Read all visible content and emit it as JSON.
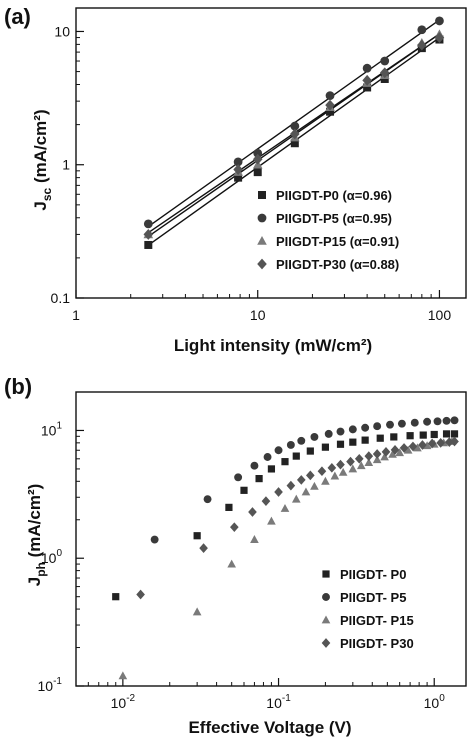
{
  "panel_a": {
    "label": "(a)",
    "chart_data": {
      "type": "scatter",
      "xscale": "log",
      "yscale": "log",
      "xlim": [
        1,
        140
      ],
      "ylim": [
        0.1,
        15
      ],
      "xticks": [
        1,
        10,
        100
      ],
      "xtick_labels": [
        "1",
        "10",
        "100"
      ],
      "yticks": [
        0.1,
        1,
        10
      ],
      "ytick_labels": [
        "0.1",
        "1",
        "10"
      ],
      "xlabel": "Light intensity (mW/cm²)",
      "ylabel_main": "J",
      "ylabel_sub": "sc",
      "ylabel_rest": " (mA/cm²)",
      "legend_position": "bottom-right",
      "fit_lines": true,
      "series": [
        {
          "name": "PIIGDT-P0 (α=0.96)",
          "marker": "square",
          "color": "#222222",
          "x": [
            2.5,
            7.8,
            10,
            16,
            25,
            40,
            50,
            80,
            100
          ],
          "y": [
            0.25,
            0.8,
            0.88,
            1.45,
            2.5,
            3.8,
            4.4,
            7.5,
            8.7
          ]
        },
        {
          "name": "PIIGDT-P5 (α=0.95)",
          "marker": "circle",
          "color": "#3a3a3a",
          "x": [
            2.5,
            7.8,
            10,
            16,
            25,
            40,
            50,
            80,
            100
          ],
          "y": [
            0.36,
            1.05,
            1.22,
            1.95,
            3.3,
            5.3,
            6.0,
            10.3,
            12.0
          ]
        },
        {
          "name": "PIIGDT-P15 (α=0.91)",
          "marker": "triangle",
          "color": "#7a7a7a",
          "x": [
            2.5,
            7.8,
            10,
            16,
            25,
            40,
            50,
            80,
            100
          ],
          "y": [
            0.3,
            0.88,
            1.0,
            1.6,
            2.7,
            4.1,
            4.7,
            8.2,
            9.5
          ]
        },
        {
          "name": "PIIGDT-P30 (α=0.88)",
          "marker": "diamond",
          "color": "#555555",
          "x": [
            2.5,
            7.8,
            10,
            16,
            25,
            40,
            50,
            80,
            100
          ],
          "y": [
            0.3,
            0.92,
            1.1,
            1.7,
            2.8,
            4.3,
            4.9,
            7.9,
            9.0
          ]
        }
      ]
    }
  },
  "panel_b": {
    "label": "(b)",
    "chart_data": {
      "type": "scatter",
      "xscale": "log",
      "yscale": "log",
      "xlim": [
        0.005,
        1.6
      ],
      "ylim": [
        0.1,
        20
      ],
      "xticks": [
        0.01,
        0.1,
        1
      ],
      "xtick_base": [
        "10",
        "10",
        "10"
      ],
      "xtick_exp": [
        "-2",
        "-1",
        "0"
      ],
      "yticks": [
        0.1,
        1,
        10
      ],
      "ytick_base": [
        "10",
        "10",
        "10"
      ],
      "ytick_exp": [
        "-1",
        "0",
        "1"
      ],
      "xlabel": "Effective Voltage (V)",
      "ylabel_main": "J",
      "ylabel_sub": "ph",
      "ylabel_rest": " (mA/cm²)",
      "legend_position": "bottom-right",
      "series": [
        {
          "name": "PIIGDT- P0",
          "marker": "square",
          "color": "#222222",
          "x": [
            0.009,
            0.03,
            0.048,
            0.06,
            0.075,
            0.09,
            0.11,
            0.13,
            0.16,
            0.2,
            0.25,
            0.3,
            0.36,
            0.45,
            0.55,
            0.7,
            0.85,
            1.0,
            1.2,
            1.35
          ],
          "y": [
            0.5,
            1.5,
            2.5,
            3.4,
            4.2,
            5.0,
            5.7,
            6.3,
            6.9,
            7.4,
            7.8,
            8.1,
            8.4,
            8.7,
            8.9,
            9.1,
            9.2,
            9.3,
            9.4,
            9.4
          ]
        },
        {
          "name": "PIIGDT- P5",
          "marker": "circle",
          "color": "#3a3a3a",
          "x": [
            0.016,
            0.035,
            0.055,
            0.07,
            0.085,
            0.1,
            0.12,
            0.14,
            0.17,
            0.21,
            0.25,
            0.3,
            0.36,
            0.43,
            0.52,
            0.62,
            0.75,
            0.9,
            1.05,
            1.2,
            1.35
          ],
          "y": [
            1.4,
            2.9,
            4.3,
            5.3,
            6.2,
            7.0,
            7.7,
            8.3,
            8.9,
            9.4,
            9.8,
            10.2,
            10.5,
            10.8,
            11.1,
            11.3,
            11.5,
            11.7,
            11.8,
            11.9,
            12.0
          ]
        },
        {
          "name": "PIIGDT- P15",
          "marker": "triangle",
          "color": "#7a7a7a",
          "x": [
            0.01,
            0.03,
            0.05,
            0.07,
            0.09,
            0.11,
            0.13,
            0.15,
            0.17,
            0.2,
            0.23,
            0.26,
            0.3,
            0.34,
            0.38,
            0.43,
            0.48,
            0.54,
            0.6,
            0.68,
            0.78,
            0.9,
            1.0,
            1.15,
            1.3
          ],
          "y": [
            0.12,
            0.38,
            0.9,
            1.4,
            1.95,
            2.45,
            2.9,
            3.3,
            3.65,
            4.0,
            4.4,
            4.7,
            5.0,
            5.3,
            5.6,
            5.9,
            6.2,
            6.5,
            6.7,
            7.0,
            7.3,
            7.6,
            7.8,
            8.0,
            8.2
          ]
        },
        {
          "name": "PIIGDT- P30",
          "marker": "diamond",
          "color": "#555555",
          "x": [
            0.013,
            0.033,
            0.052,
            0.068,
            0.083,
            0.1,
            0.12,
            0.14,
            0.16,
            0.19,
            0.22,
            0.25,
            0.29,
            0.33,
            0.38,
            0.43,
            0.49,
            0.56,
            0.64,
            0.73,
            0.84,
            0.97,
            1.1,
            1.25,
            1.35
          ],
          "y": [
            0.52,
            1.2,
            1.75,
            2.3,
            2.8,
            3.3,
            3.7,
            4.1,
            4.45,
            4.8,
            5.1,
            5.4,
            5.7,
            6.0,
            6.3,
            6.55,
            6.8,
            7.05,
            7.3,
            7.5,
            7.7,
            7.9,
            8.0,
            8.1,
            8.2
          ]
        }
      ]
    }
  }
}
